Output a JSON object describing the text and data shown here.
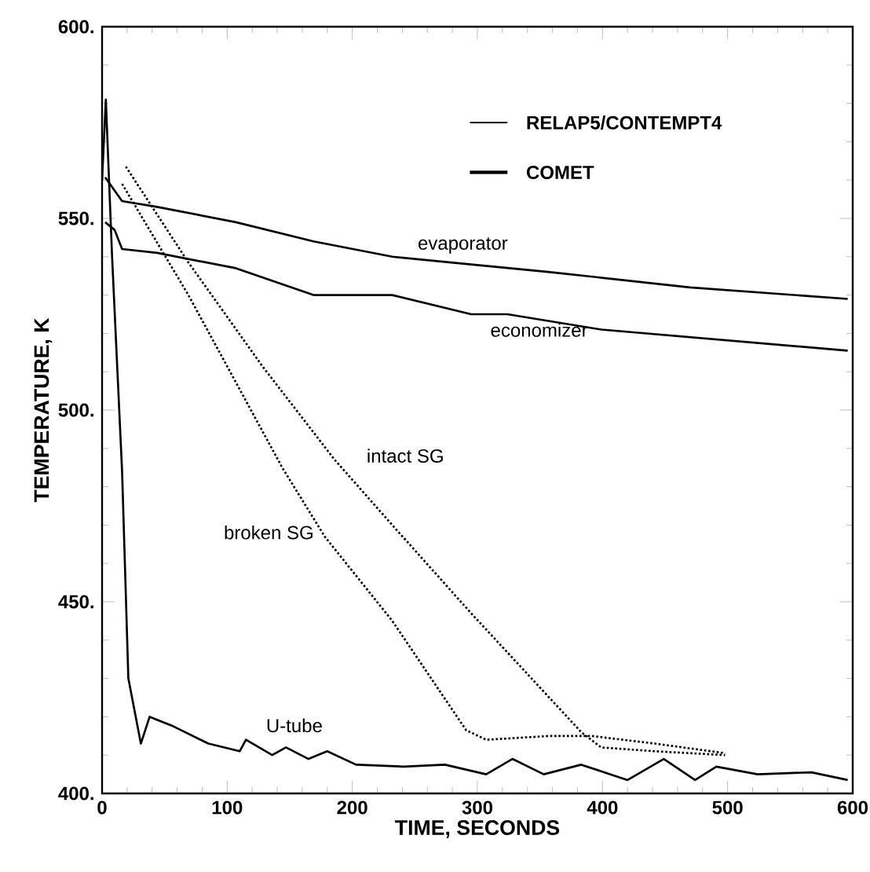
{
  "chart_data": {
    "type": "line",
    "xlabel": "TIME, SECONDS",
    "ylabel": "TEMPERATURE, K",
    "xlim": [
      0,
      600
    ],
    "ylim": [
      400,
      600
    ],
    "xticks": [
      0,
      100,
      200,
      300,
      400,
      500,
      600
    ],
    "yticks": [
      {
        "value": 400,
        "label": "400."
      },
      {
        "value": 450,
        "label": "450."
      },
      {
        "value": 500,
        "label": "500."
      },
      {
        "value": 550,
        "label": "550."
      },
      {
        "value": 600,
        "label": "600."
      }
    ],
    "grid": false,
    "annotations": [
      "RELAP5/CONTEMPT4",
      "COMET"
    ],
    "series": [
      {
        "name": "evaporator",
        "color": "#000000",
        "line_style": "solid",
        "x": [
          2.5,
          16,
          44,
          107,
          169,
          232,
          295,
          358,
          470,
          596
        ],
        "values": [
          560.7,
          554.5,
          553,
          549,
          544,
          540,
          538,
          536,
          532,
          529
        ]
      },
      {
        "name": "economizer",
        "color": "#000000",
        "line_style": "solid",
        "x": [
          2.5,
          10,
          16,
          44,
          107,
          169,
          232,
          295,
          324,
          399,
          596
        ],
        "values": [
          549,
          547,
          542,
          541,
          537,
          530,
          530,
          525,
          525,
          521,
          515.5
        ]
      },
      {
        "name": "U-tube",
        "color": "#000000",
        "line_style": "solid",
        "x": [
          0,
          3,
          8,
          16,
          21,
          31,
          38,
          57,
          85,
          110,
          115,
          136,
          147,
          165,
          180,
          203,
          241,
          274,
          307,
          328,
          353,
          383,
          420,
          449,
          474,
          491,
          524,
          567,
          596
        ],
        "values": [
          560,
          581,
          540,
          484,
          430,
          413,
          420,
          417.5,
          413,
          411,
          414,
          410,
          412,
          409,
          411,
          407.5,
          407,
          407.5,
          405,
          409,
          405,
          407.5,
          403.5,
          409,
          403.5,
          407,
          405,
          405.5,
          403.5
        ]
      },
      {
        "name": "intact SG",
        "color": "#000000",
        "line_style": "dotted",
        "x": [
          19,
          69,
          128,
          186,
          232,
          295,
          383,
          399,
          442,
          498
        ],
        "values": [
          563.5,
          538.5,
          511.5,
          487,
          470,
          447,
          416,
          412,
          411,
          410
        ]
      },
      {
        "name": "broken SG",
        "color": "#000000",
        "line_style": "dotted",
        "x": [
          16,
          69,
          144,
          178,
          232,
          291,
          307,
          358,
          391,
          442,
          498
        ],
        "values": [
          559,
          530,
          485,
          467,
          445,
          416.5,
          414,
          415,
          415,
          413,
          410.5
        ]
      }
    ]
  }
}
